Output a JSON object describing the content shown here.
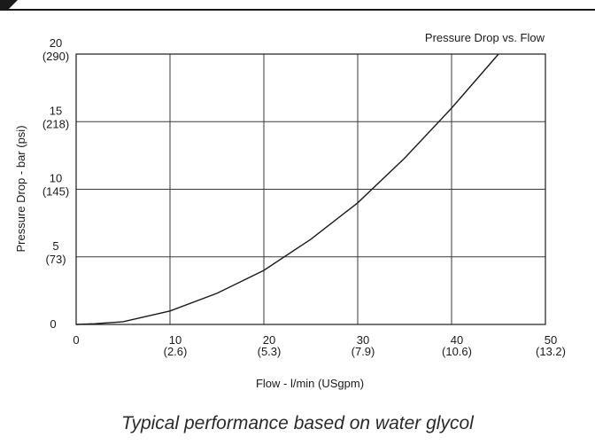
{
  "chart_data": {
    "type": "line",
    "title": "Pressure Drop vs. Flow",
    "xlabel": "Flow - l/min (USgpm)",
    "ylabel": "Pressure Drop - bar (psi)",
    "xlim": [
      0,
      50
    ],
    "ylim": [
      0,
      20
    ],
    "grid": true,
    "x_ticks": [
      {
        "value": 0,
        "label": "0",
        "sub": ""
      },
      {
        "value": 10,
        "label": "10",
        "sub": "(2.6)"
      },
      {
        "value": 20,
        "label": "20",
        "sub": "(5.3)"
      },
      {
        "value": 30,
        "label": "30",
        "sub": "(7.9)"
      },
      {
        "value": 40,
        "label": "40",
        "sub": "(10.6)"
      },
      {
        "value": 50,
        "label": "50",
        "sub": "(13.2)"
      }
    ],
    "y_ticks": [
      {
        "value": 0,
        "label": "0",
        "sub": ""
      },
      {
        "value": 5,
        "label": "5",
        "sub": "(73)"
      },
      {
        "value": 10,
        "label": "10",
        "sub": "(145)"
      },
      {
        "value": 15,
        "label": "15",
        "sub": "(218)"
      },
      {
        "value": 20,
        "label": "20",
        "sub": "(290)"
      }
    ],
    "series": [
      {
        "x": [
          0,
          2,
          5,
          10,
          15,
          20,
          25,
          30,
          35,
          40,
          45
        ],
        "y": [
          0,
          0.05,
          0.2,
          1.0,
          2.3,
          4.0,
          6.3,
          9.0,
          12.3,
          16.0,
          20.0
        ]
      }
    ]
  },
  "caption": "Typical performance based on water glycol",
  "colors": {
    "line": "#1a1a1a",
    "grid": "#3a3a3a",
    "frame": "#1a1a1a"
  }
}
